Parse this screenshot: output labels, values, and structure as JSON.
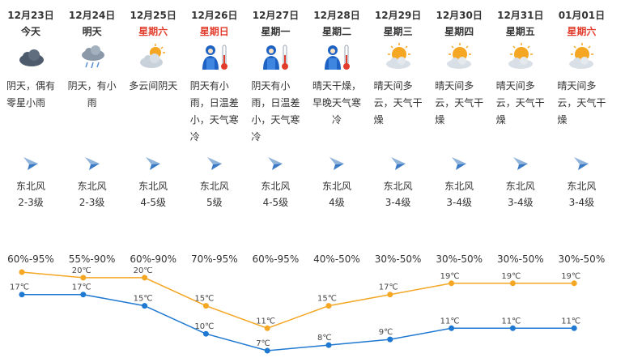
{
  "days": [
    {
      "date": "12月23日",
      "weekday": "今天",
      "weekend": false,
      "icon": "overcast-cloud-icon",
      "desc": "阴天，偶有零星小雨",
      "wind_dir": "东北风",
      "wind_level": "2-3级",
      "humidity": "60%-95%"
    },
    {
      "date": "12月24日",
      "weekday": "明天",
      "weekend": false,
      "icon": "light-rain-icon",
      "desc": "阴天，有小雨",
      "wind_dir": "东北风",
      "wind_level": "2-3级",
      "humidity": "55%-90%"
    },
    {
      "date": "12月25日",
      "weekday": "星期六",
      "weekend": true,
      "icon": "partly-cloudy-icon",
      "desc": "多云间阴天",
      "wind_dir": "东北风",
      "wind_level": "4-5级",
      "humidity": "60%-90%"
    },
    {
      "date": "12月26日",
      "weekday": "星期日",
      "weekend": true,
      "icon": "cold-weather-icon",
      "desc": "阴天有小雨，日温差小，天气寒冷",
      "wind_dir": "东北风",
      "wind_level": "5级",
      "humidity": "70%-95%"
    },
    {
      "date": "12月27日",
      "weekday": "星期一",
      "weekend": false,
      "icon": "cold-weather-icon",
      "desc": "阴天有小雨，日温差小，天气寒冷",
      "wind_dir": "东北风",
      "wind_level": "4-5级",
      "humidity": "60%-95%"
    },
    {
      "date": "12月28日",
      "weekday": "星期二",
      "weekend": false,
      "icon": "cold-weather-icon",
      "desc": "晴天干燥，早晚天气寒冷",
      "wind_dir": "东北风",
      "wind_level": "4级",
      "humidity": "40%-50%"
    },
    {
      "date": "12月29日",
      "weekday": "星期三",
      "weekend": false,
      "icon": "sunny-cloudy-icon",
      "desc": "晴天间多云，天气干燥",
      "wind_dir": "东北风",
      "wind_level": "3-4级",
      "humidity": "30%-50%"
    },
    {
      "date": "12月30日",
      "weekday": "星期四",
      "weekend": false,
      "icon": "sunny-cloudy-icon",
      "desc": "晴天间多云，天气干燥",
      "wind_dir": "东北风",
      "wind_level": "3-4级",
      "humidity": "30%-50%"
    },
    {
      "date": "12月31日",
      "weekday": "星期五",
      "weekend": false,
      "icon": "sunny-cloudy-icon",
      "desc": "晴天间多云，天气干燥",
      "wind_dir": "东北风",
      "wind_level": "3-4级",
      "humidity": "30%-50%"
    },
    {
      "date": "01月01日",
      "weekday": "星期六",
      "weekend": true,
      "icon": "sunny-cloudy-icon",
      "desc": "晴天间多云，天气干燥",
      "wind_dir": "东北风",
      "wind_level": "3-4级",
      "humidity": "30%-50%"
    }
  ],
  "chart_data": {
    "type": "line",
    "categories": [
      "12月23日",
      "12月24日",
      "12月25日",
      "12月26日",
      "12月27日",
      "12月28日",
      "12月29日",
      "12月30日",
      "12月31日",
      "01月01日"
    ],
    "series": [
      {
        "values": [
          21,
          20,
          20,
          15,
          11,
          15,
          17,
          19,
          19,
          19
        ],
        "color": "#f5a623"
      },
      {
        "values": [
          17,
          17,
          15,
          10,
          7,
          8,
          9,
          11,
          11,
          11
        ],
        "color": "#1f78d1"
      }
    ],
    "unit": "℃",
    "grid": false,
    "legend": "none"
  }
}
